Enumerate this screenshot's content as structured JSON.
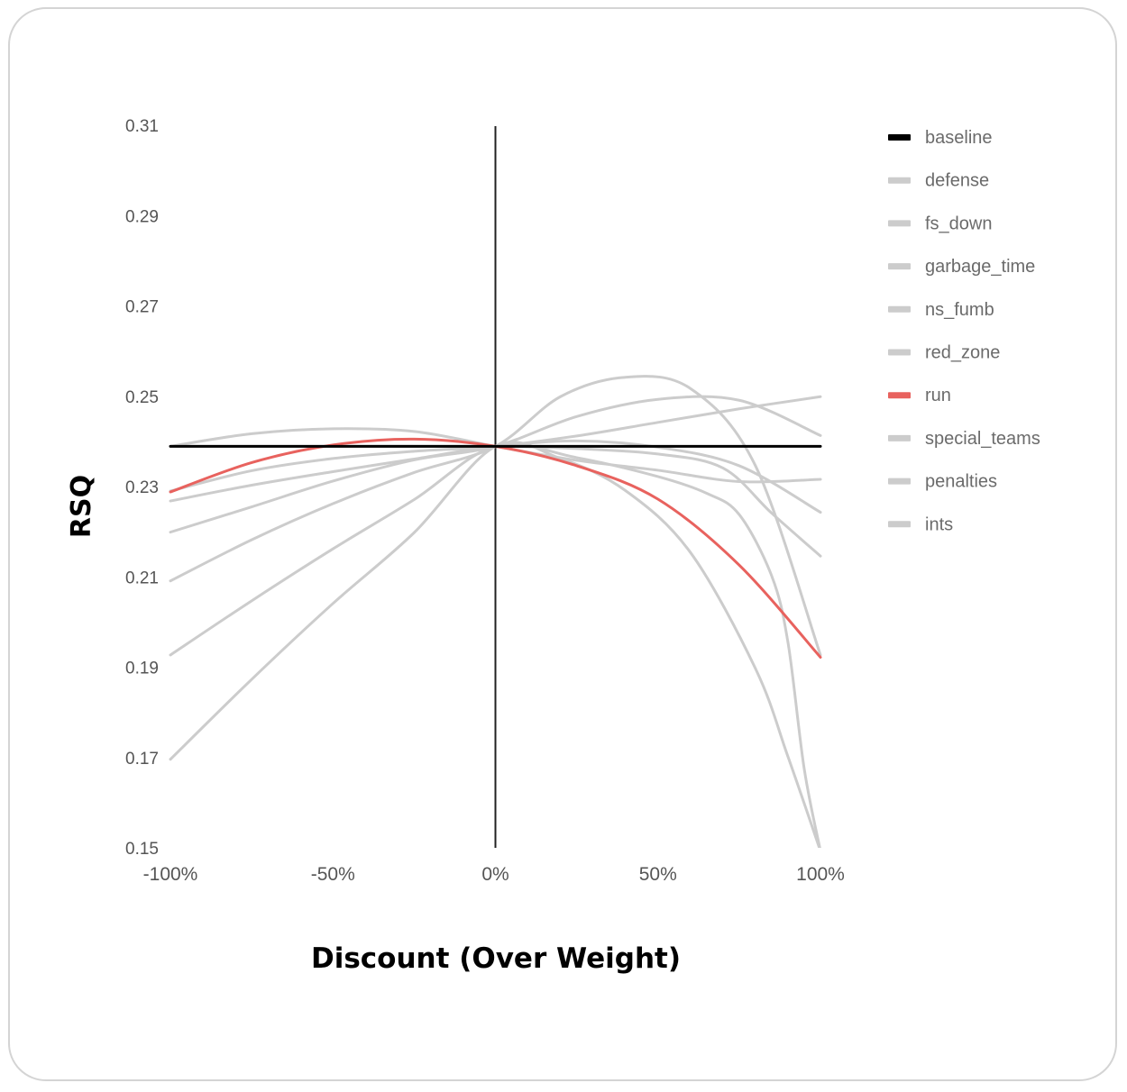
{
  "chart_data": {
    "type": "line",
    "title": "",
    "xlabel": "Discount (Over Weight)",
    "ylabel": "RSQ",
    "xlim": [
      -100,
      100
    ],
    "ylim": [
      0.15,
      0.31
    ],
    "x_ticks": [
      {
        "value": -100,
        "label": "-100%"
      },
      {
        "value": -50,
        "label": "-50%"
      },
      {
        "value": 0,
        "label": "0%"
      },
      {
        "value": 50,
        "label": "50%"
      },
      {
        "value": 100,
        "label": "100%"
      }
    ],
    "y_ticks": [
      {
        "value": 0.15,
        "label": "0.15"
      },
      {
        "value": 0.17,
        "label": "0.17"
      },
      {
        "value": 0.19,
        "label": "0.19"
      },
      {
        "value": 0.21,
        "label": "0.21"
      },
      {
        "value": 0.23,
        "label": "0.23"
      },
      {
        "value": 0.25,
        "label": "0.25"
      },
      {
        "value": 0.27,
        "label": "0.27"
      },
      {
        "value": 0.29,
        "label": "0.29"
      },
      {
        "value": 0.31,
        "label": "0.31"
      }
    ],
    "legend_position": "right",
    "grid": false,
    "series": [
      {
        "name": "baseline",
        "color": "#000000",
        "points": [
          [
            -100,
            0.2389
          ],
          [
            -50,
            0.2389
          ],
          [
            0,
            0.2389
          ],
          [
            50,
            0.2389
          ],
          [
            100,
            0.2389
          ]
        ]
      },
      {
        "name": "defense",
        "color": "#cccccc",
        "points": [
          [
            -100,
            0.2389
          ],
          [
            -75,
            0.2417
          ],
          [
            -50,
            0.2428
          ],
          [
            -25,
            0.2422
          ],
          [
            0,
            0.2389
          ],
          [
            25,
            0.2358
          ],
          [
            50,
            0.2336
          ],
          [
            75,
            0.2311
          ],
          [
            100,
            0.2316
          ]
        ]
      },
      {
        "name": "fs_down",
        "color": "#cccccc",
        "points": [
          [
            -100,
            0.229
          ],
          [
            -75,
            0.2335
          ],
          [
            -50,
            0.2362
          ],
          [
            -25,
            0.2378
          ],
          [
            0,
            0.2389
          ],
          [
            25,
            0.2412
          ],
          [
            50,
            0.2442
          ],
          [
            75,
            0.2472
          ],
          [
            100,
            0.2499
          ]
        ]
      },
      {
        "name": "garbage_time",
        "color": "#cccccc",
        "points": [
          [
            -100,
            0.2268
          ],
          [
            -75,
            0.2303
          ],
          [
            -50,
            0.2333
          ],
          [
            -25,
            0.2361
          ],
          [
            0,
            0.2389
          ],
          [
            25,
            0.2401
          ],
          [
            50,
            0.2387
          ],
          [
            75,
            0.2346
          ],
          [
            100,
            0.2243
          ]
        ]
      },
      {
        "name": "ns_fumb",
        "color": "#cccccc",
        "points": [
          [
            -100,
            0.2199
          ],
          [
            -75,
            0.2255
          ],
          [
            -50,
            0.2312
          ],
          [
            -25,
            0.2359
          ],
          [
            0,
            0.2389
          ],
          [
            25,
            0.2455
          ],
          [
            50,
            0.2493
          ],
          [
            75,
            0.2491
          ],
          [
            100,
            0.2413
          ]
        ]
      },
      {
        "name": "red_zone",
        "color": "#cccccc",
        "points": [
          [
            -100,
            0.2091
          ],
          [
            -75,
            0.2182
          ],
          [
            -50,
            0.2262
          ],
          [
            -25,
            0.2331
          ],
          [
            0,
            0.2389
          ],
          [
            20,
            0.2499
          ],
          [
            40,
            0.2542
          ],
          [
            60,
            0.2517
          ],
          [
            80,
            0.2346
          ],
          [
            100,
            0.1927
          ]
        ]
      },
      {
        "name": "run",
        "color": "#e8625e",
        "points": [
          [
            -100,
            0.2288
          ],
          [
            -75,
            0.2353
          ],
          [
            -50,
            0.2392
          ],
          [
            -25,
            0.2405
          ],
          [
            0,
            0.2389
          ],
          [
            25,
            0.2346
          ],
          [
            50,
            0.2272
          ],
          [
            75,
            0.2126
          ],
          [
            100,
            0.1922
          ]
        ]
      },
      {
        "name": "special_teams",
        "color": "#cccccc",
        "points": [
          [
            -100,
            0.1927
          ],
          [
            -75,
            0.2047
          ],
          [
            -50,
            0.2162
          ],
          [
            -25,
            0.2271
          ],
          [
            0,
            0.2389
          ],
          [
            25,
            0.2364
          ],
          [
            50,
            0.2322
          ],
          [
            65,
            0.2285
          ],
          [
            75,
            0.2238
          ],
          [
            85,
            0.2102
          ],
          [
            90,
            0.1955
          ],
          [
            95,
            0.1675
          ],
          [
            100,
            0.1493
          ]
        ]
      },
      {
        "name": "penalties",
        "color": "#cccccc",
        "points": [
          [
            -100,
            0.1696
          ],
          [
            -75,
            0.1873
          ],
          [
            -50,
            0.2041
          ],
          [
            -25,
            0.2198
          ],
          [
            0,
            0.2389
          ],
          [
            20,
            0.2362
          ],
          [
            40,
            0.2291
          ],
          [
            60,
            0.2154
          ],
          [
            80,
            0.1897
          ],
          [
            90,
            0.1702
          ],
          [
            100,
            0.1493
          ]
        ]
      },
      {
        "name": "ints",
        "color": "#cccccc",
        "points": [
          [
            -100,
            0.2389
          ],
          [
            -50,
            0.2389
          ],
          [
            0,
            0.2389
          ],
          [
            25,
            0.2384
          ],
          [
            50,
            0.2372
          ],
          [
            70,
            0.2341
          ],
          [
            85,
            0.2241
          ],
          [
            100,
            0.2146
          ]
        ]
      }
    ]
  }
}
